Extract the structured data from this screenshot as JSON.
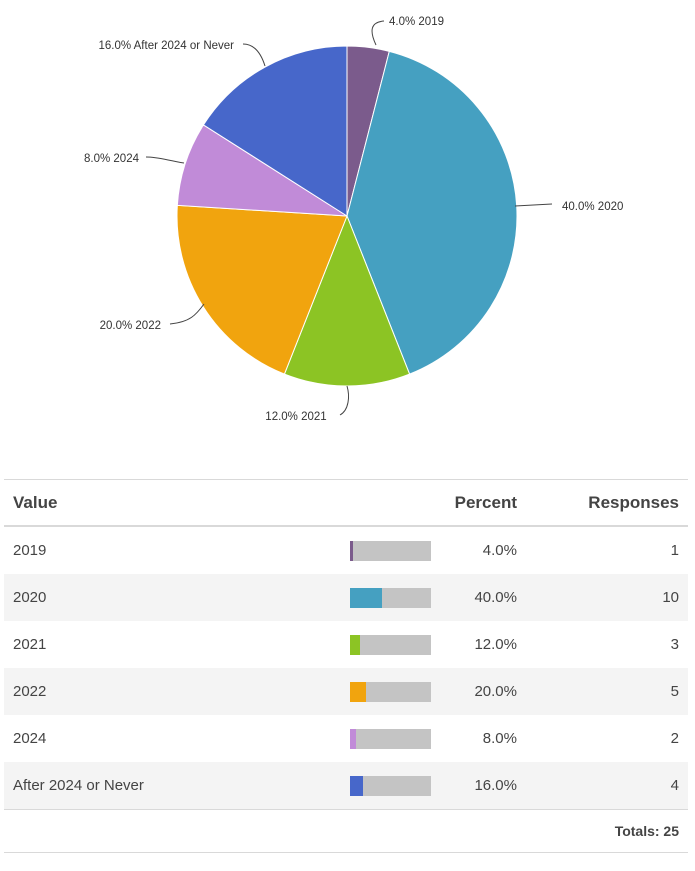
{
  "chart_data": {
    "type": "pie",
    "slices": [
      {
        "label": "2019",
        "percent": 4.0,
        "responses": 1,
        "percent_text": "4.0%",
        "slice_label": "4.0% 2019",
        "color": "#7b5b8c"
      },
      {
        "label": "2020",
        "percent": 40.0,
        "responses": 10,
        "percent_text": "40.0%",
        "slice_label": "40.0% 2020",
        "color": "#45a0c1"
      },
      {
        "label": "2021",
        "percent": 12.0,
        "responses": 3,
        "percent_text": "12.0%",
        "slice_label": "12.0% 2021",
        "color": "#8cc424"
      },
      {
        "label": "2022",
        "percent": 20.0,
        "responses": 5,
        "percent_text": "20.0%",
        "slice_label": "20.0% 2022",
        "color": "#f1a40e"
      },
      {
        "label": "2024",
        "percent": 8.0,
        "responses": 2,
        "percent_text": "8.0%",
        "slice_label": "8.0% 2024",
        "color": "#c18bd8"
      },
      {
        "label": "After 2024 or Never",
        "percent": 16.0,
        "responses": 4,
        "percent_text": "16.0%",
        "slice_label": "16.0% After 2024 or Never",
        "color": "#4767ca"
      }
    ]
  },
  "table": {
    "headers": {
      "value": "Value",
      "percent": "Percent",
      "responses": "Responses"
    },
    "totals_text": "Totals: 25"
  }
}
